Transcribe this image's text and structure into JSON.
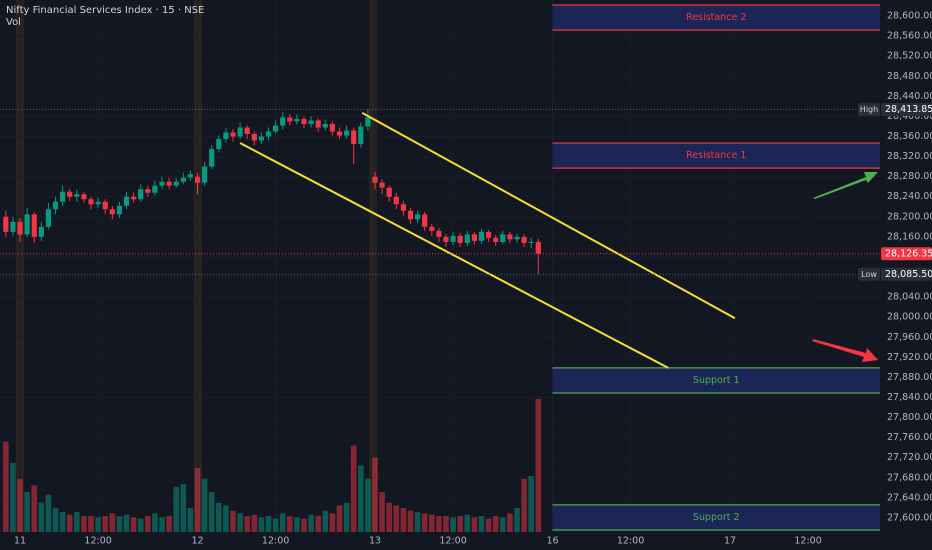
{
  "chart_data": {
    "type": "candlestick",
    "title": "Nifty Financial Services Index · 15 · NSE",
    "volume_title": "Vol",
    "x": [
      -2,
      -1,
      0,
      1,
      2,
      3,
      4,
      5,
      6,
      7,
      8,
      9,
      10,
      11,
      12,
      13,
      14,
      15,
      16,
      17,
      18,
      19,
      20,
      21,
      22,
      23,
      24,
      25,
      26,
      27,
      28,
      29,
      30,
      31,
      32,
      33,
      34,
      35,
      36,
      37,
      38,
      39,
      40,
      41,
      42,
      43,
      44,
      45,
      46,
      47,
      48,
      49,
      50,
      51,
      52,
      53,
      54,
      55,
      56,
      57,
      58,
      59,
      60,
      61,
      62,
      63,
      64,
      65,
      66,
      67,
      68,
      69,
      70,
      71,
      72,
      73
    ],
    "open": [
      28200,
      28170,
      28190,
      28165,
      28205,
      28160,
      28180,
      28215,
      28230,
      28250,
      28240,
      28245,
      28235,
      28225,
      28230,
      28215,
      28205,
      28222,
      28240,
      28235,
      28255,
      28248,
      28262,
      28270,
      28262,
      28270,
      28278,
      28280,
      28268,
      28300,
      28335,
      28355,
      28368,
      28360,
      28378,
      28365,
      28352,
      28360,
      28370,
      28382,
      28398,
      28390,
      28395,
      28385,
      28392,
      28378,
      28385,
      28370,
      28362,
      28372,
      28345,
      28380,
      28280,
      28268,
      28258,
      28240,
      28225,
      28212,
      28195,
      28205,
      28180,
      28172,
      28160,
      28150,
      28162,
      28148,
      28165,
      28152,
      28170,
      28158,
      28150,
      28165,
      28155,
      28160,
      28148,
      28150
    ],
    "high": [
      28212,
      28200,
      28198,
      28218,
      28210,
      28190,
      28228,
      28240,
      28262,
      28256,
      28255,
      28250,
      28240,
      28238,
      28235,
      28222,
      28230,
      28250,
      28248,
      28265,
      28262,
      28272,
      28280,
      28278,
      28278,
      28288,
      28292,
      28288,
      28310,
      28342,
      28362,
      28378,
      28375,
      28388,
      28382,
      28370,
      28368,
      28378,
      28392,
      28408,
      28405,
      28404,
      28400,
      28400,
      28396,
      28394,
      28390,
      28378,
      28382,
      28378,
      28388,
      28413.85,
      28290,
      28275,
      28262,
      28248,
      28232,
      28218,
      28212,
      28210,
      28186,
      28178,
      28166,
      28170,
      28168,
      28172,
      28170,
      28176,
      28174,
      28164,
      28172,
      28170,
      28166,
      28165,
      28158,
      28156
    ],
    "low": [
      28160,
      28162,
      28150,
      28160,
      28148,
      28152,
      28175,
      28205,
      28222,
      28232,
      28230,
      28228,
      28215,
      28218,
      28205,
      28195,
      28198,
      28215,
      28228,
      28230,
      28240,
      28242,
      28255,
      28255,
      28258,
      28265,
      28272,
      28245,
      28262,
      28295,
      28328,
      28348,
      28350,
      28355,
      28355,
      28342,
      28345,
      28352,
      28365,
      28375,
      28382,
      28384,
      28376,
      28378,
      28370,
      28372,
      28362,
      28355,
      28356,
      28305,
      28338,
      28372,
      28255,
      28245,
      28230,
      28215,
      28202,
      28186,
      28188,
      28172,
      28162,
      28150,
      28140,
      28144,
      28140,
      28142,
      28145,
      28146,
      28150,
      28142,
      28146,
      28148,
      28148,
      28140,
      28138,
      28085.5
    ],
    "close": [
      28170,
      28190,
      28165,
      28205,
      28160,
      28180,
      28215,
      28230,
      28250,
      28240,
      28245,
      28235,
      28225,
      28230,
      28215,
      28205,
      28222,
      28240,
      28235,
      28255,
      28248,
      28262,
      28270,
      28262,
      28270,
      28278,
      28285,
      28268,
      28300,
      28335,
      28355,
      28368,
      28360,
      28378,
      28365,
      28352,
      28360,
      28370,
      28382,
      28398,
      28390,
      28395,
      28385,
      28392,
      28378,
      28385,
      28370,
      28362,
      28372,
      28345,
      28380,
      28398,
      28268,
      28258,
      28240,
      28225,
      28212,
      28195,
      28205,
      28180,
      28172,
      28160,
      28150,
      28162,
      28148,
      28165,
      28152,
      28170,
      28158,
      28150,
      28165,
      28155,
      28160,
      28148,
      28150,
      28126.35
    ],
    "volume": [
      68,
      52,
      40,
      30,
      35,
      22,
      28,
      18,
      15,
      13,
      15,
      12,
      12,
      11,
      12,
      14,
      12,
      13,
      11,
      10,
      12,
      14,
      11,
      12,
      34,
      36,
      18,
      48,
      40,
      30,
      22,
      20,
      16,
      14,
      12,
      13,
      11,
      12,
      10,
      14,
      12,
      11,
      10,
      13,
      12,
      16,
      14,
      20,
      22,
      65,
      50,
      40,
      56,
      30,
      22,
      20,
      18,
      16,
      15,
      14,
      13,
      12,
      12,
      11,
      12,
      13,
      11,
      12,
      10,
      12,
      11,
      14,
      18,
      40,
      42,
      100
    ],
    "volume_lim": [
      0,
      400
    ],
    "up_color": "#089981",
    "down_color": "#f23645",
    "xlim": [
      -2.82,
      121.13
    ],
    "xticks": [
      {
        "value": 0,
        "label": "11"
      },
      {
        "value": 11,
        "label": "12:00"
      },
      {
        "value": 25,
        "label": "12"
      },
      {
        "value": 36,
        "label": "12:00"
      },
      {
        "value": 50,
        "label": "13"
      },
      {
        "value": 61,
        "label": "12:00"
      },
      {
        "value": 75,
        "label": "16"
      },
      {
        "value": 86,
        "label": "12:00"
      },
      {
        "value": 100,
        "label": "17"
      },
      {
        "value": 111,
        "label": "12:00"
      }
    ],
    "ylim": [
      27572,
      28632
    ],
    "yticks": [
      {
        "value": 28600,
        "label": "28,600.00"
      },
      {
        "value": 28560,
        "label": "28,560.00"
      },
      {
        "value": 28520,
        "label": "28,520.00"
      },
      {
        "value": 28480,
        "label": "28,480.00"
      },
      {
        "value": 28440,
        "label": "28,440.00"
      },
      {
        "value": 28400,
        "label": "28,400.00"
      },
      {
        "value": 28360,
        "label": "28,360.00"
      },
      {
        "value": 28320,
        "label": "28,320.00"
      },
      {
        "value": 28280,
        "label": "28,280.00"
      },
      {
        "value": 28240,
        "label": "28,240.00"
      },
      {
        "value": 28200,
        "label": "28,200.00"
      },
      {
        "value": 28160,
        "label": "28,160.00"
      },
      {
        "value": 28120,
        "label": "28,120.00"
      },
      {
        "value": 28080,
        "label": "28,080.00"
      },
      {
        "value": 28040,
        "label": "28,040.00"
      },
      {
        "value": 28000,
        "label": "28,000.00"
      },
      {
        "value": 27960,
        "label": "27,960.00"
      },
      {
        "value": 27920,
        "label": "27,920.00"
      },
      {
        "value": 27880,
        "label": "27,880.00"
      },
      {
        "value": 27840,
        "label": "27,840.00"
      },
      {
        "value": 27800,
        "label": "27,800.00"
      },
      {
        "value": 27760,
        "label": "27,760.00"
      },
      {
        "value": 27720,
        "label": "27,720.00"
      },
      {
        "value": 27680,
        "label": "27,680.00"
      },
      {
        "value": 27640,
        "label": "27,640.00"
      },
      {
        "value": 27600,
        "label": "27,600.00"
      }
    ],
    "zones": [
      {
        "label": "Resistance 2",
        "high": 28622,
        "low": 28572,
        "from": 75,
        "color": "#f23645"
      },
      {
        "label": "Resistance 1",
        "high": 28347,
        "low": 28297,
        "from": 75,
        "color": "#f23645"
      },
      {
        "label": "Support 1",
        "high": 27899,
        "low": 27849,
        "from": 75,
        "color": "#4caf50"
      },
      {
        "label": "Support 2",
        "high": 27626,
        "low": 27576,
        "from": 75,
        "color": "#4caf50"
      }
    ],
    "trend_lines": [
      {
        "x": [
          48.2,
          100.7
        ],
        "y": [
          28407,
          27998
        ],
        "color": "#f5e12a"
      },
      {
        "x": [
          31,
          91.3
        ],
        "y": [
          28347,
          27899
        ],
        "color": "#f5e12a"
      }
    ],
    "price_labels": [
      {
        "name": "High",
        "value": 28413.85,
        "label": "28,413.85",
        "color": "#2a2e39"
      },
      {
        "value": 28126.35,
        "label": "28,126.35",
        "color": "#f23645"
      },
      {
        "name": "Low",
        "value": 28085.5,
        "label": "28,085.50",
        "color": "#2a2e39"
      }
    ]
  }
}
